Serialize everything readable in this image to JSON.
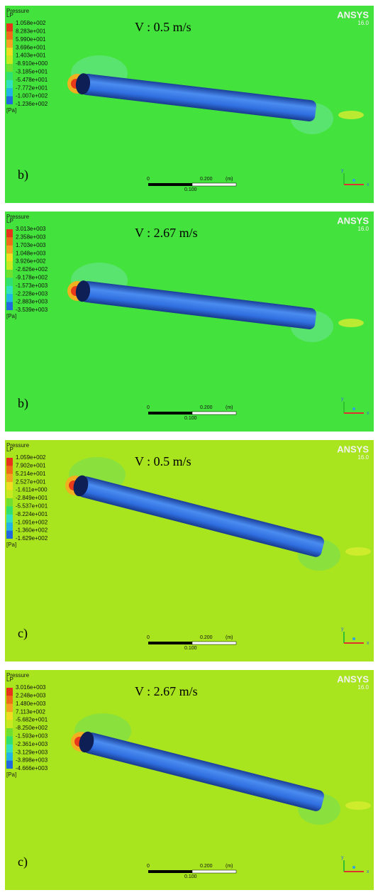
{
  "panels": [
    {
      "legend_title": "Pressure",
      "legend_subtitle": "LP",
      "legend_values": [
        "1.058e+002",
        "8.283e+001",
        "5.990e+001",
        "3.696e+001",
        "1.403e+001",
        "-8.910e+000",
        "-3.185e+001",
        "-5.478e+001",
        "-7.772e+001",
        "-1.007e+002",
        "-1.236e+002"
      ],
      "unit": "[Pa]",
      "logo": "ANSYS",
      "version": "16.0",
      "velocity": "V : 0.5 m/s",
      "label": "b)",
      "scale": {
        "start": "0",
        "end": "0.200",
        "unit": "(m)",
        "mid": "0.100"
      },
      "axes": {
        "x": "x",
        "y": "y"
      }
    },
    {
      "legend_title": "Pressure",
      "legend_subtitle": "LP",
      "legend_values": [
        "3.013e+003",
        "2.358e+003",
        "1.703e+003",
        "1.048e+003",
        "3.926e+002",
        "-2.626e+002",
        "-9.178e+002",
        "-1.573e+003",
        "-2.228e+003",
        "-2.883e+003",
        "-3.539e+003"
      ],
      "unit": "[Pa]",
      "logo": "ANSYS",
      "version": "16.0",
      "velocity": "V : 2.67 m/s",
      "label": "b)",
      "scale": {
        "start": "0",
        "end": "0.200",
        "unit": "(m)",
        "mid": "0.100"
      },
      "axes": {
        "x": "x",
        "y": "y"
      }
    },
    {
      "legend_title": "Pressure",
      "legend_subtitle": "LP",
      "legend_values": [
        "1.059e+002",
        "7.902e+001",
        "5.214e+001",
        "2.527e+001",
        "-1.611e+000",
        "-2.849e+001",
        "-5.537e+001",
        "-8.224e+001",
        "-1.091e+002",
        "-1.360e+002",
        "-1.629e+002"
      ],
      "unit": "[Pa]",
      "logo": "ANSYS",
      "version": "16.0",
      "velocity": "V : 0.5 m/s",
      "label": "c)",
      "scale": {
        "start": "0",
        "end": "0.200",
        "unit": "(m)",
        "mid": "0.100"
      },
      "axes": {
        "x": "x",
        "y": "y"
      }
    },
    {
      "legend_title": "Pressure",
      "legend_subtitle": "LP",
      "legend_values": [
        "3.016e+003",
        "2.248e+003",
        "1.480e+003",
        "7.113e+002",
        "-5.682e+001",
        "-8.250e+002",
        "-1.593e+003",
        "-2.361e+003",
        "-3.129e+003",
        "-3.898e+003",
        "-4.666e+003"
      ],
      "unit": "[Pa]",
      "logo": "ANSYS",
      "version": "16.0",
      "velocity": "V : 2.67 m/s",
      "label": "c)",
      "scale": {
        "start": "0",
        "end": "0.200",
        "unit": "(m)",
        "mid": "0.100"
      },
      "axes": {
        "x": "x",
        "y": "y"
      }
    }
  ]
}
